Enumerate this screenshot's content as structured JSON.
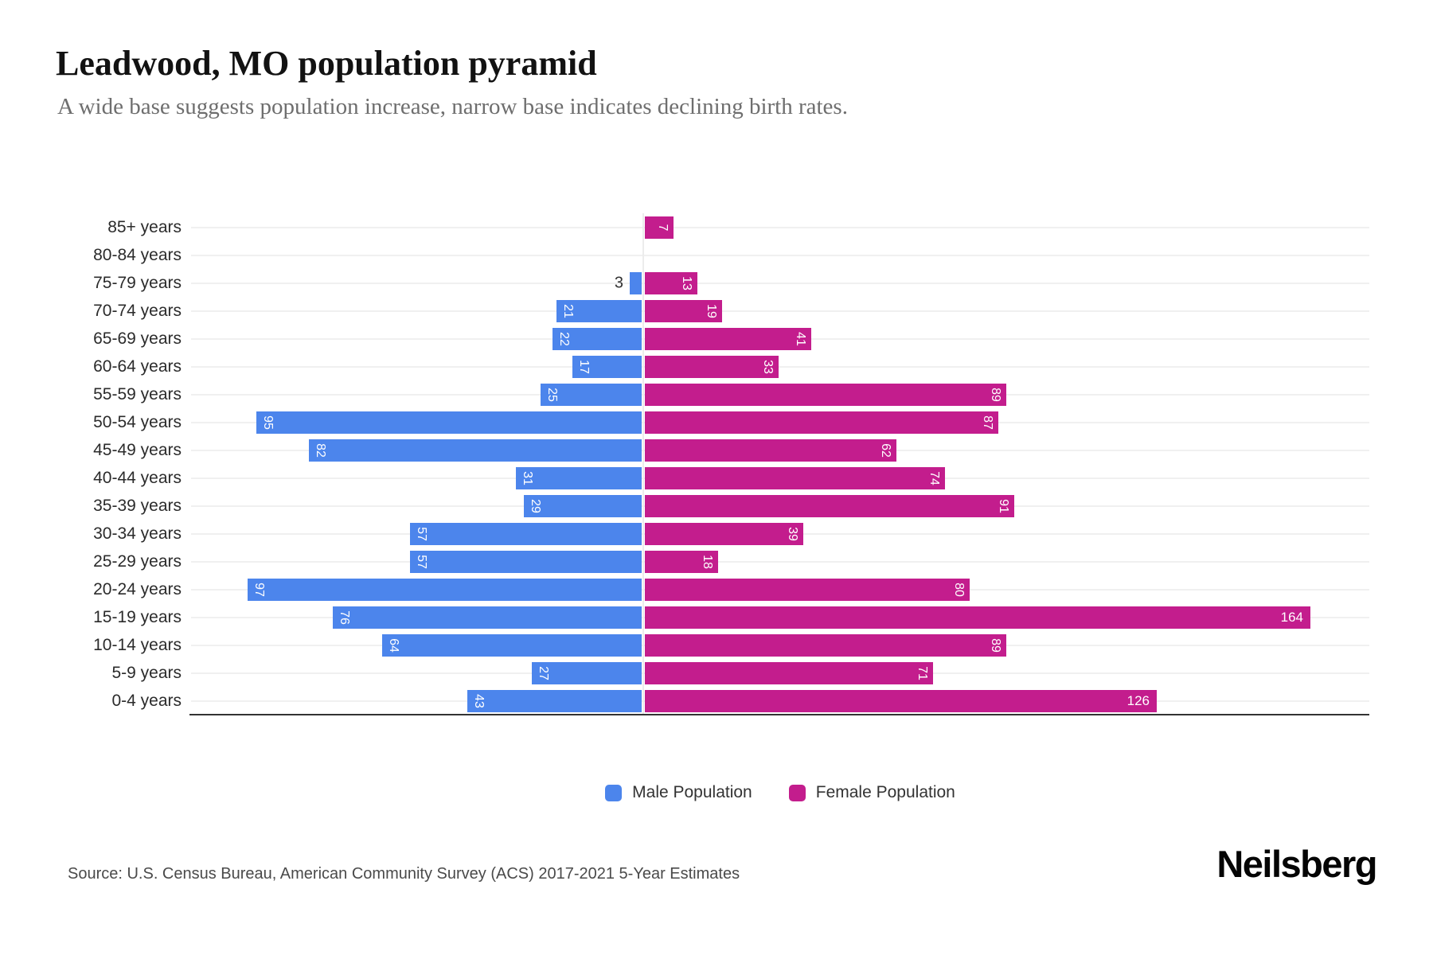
{
  "title": "Leadwood, MO population pyramid",
  "subtitle": "A wide base suggests population increase, narrow base indicates declining birth rates.",
  "source": "Source: U.S. Census Bureau, American Community Survey (ACS) 2017-2021 5-Year Estimates",
  "brand": "Neilsberg",
  "legend": {
    "male_label": "Male Population",
    "female_label": "Female Population"
  },
  "colors": {
    "male": "#4C85EC",
    "female": "#C31D8D",
    "grid": "#f0f0f0",
    "axis": "#333333",
    "title_text": "#121212",
    "subtitle_text": "#6e6e6e"
  },
  "chart_data": {
    "type": "bar",
    "variant": "population-pyramid",
    "title": "Leadwood, MO population pyramid",
    "xlabel": "",
    "ylabel": "",
    "grid": "horizontal",
    "legend_position": "bottom",
    "categories": [
      "85+ years",
      "80-84 years",
      "75-79 years",
      "70-74 years",
      "65-69 years",
      "60-64 years",
      "55-59 years",
      "50-54 years",
      "45-49 years",
      "40-44 years",
      "35-39 years",
      "30-34 years",
      "25-29 years",
      "20-24 years",
      "15-19 years",
      "10-14 years",
      "5-9 years",
      "0-4 years"
    ],
    "series": [
      {
        "name": "Male Population",
        "side": "left",
        "color": "#4C85EC",
        "values": [
          0,
          0,
          3,
          21,
          22,
          17,
          25,
          95,
          82,
          31,
          29,
          57,
          57,
          97,
          76,
          64,
          27,
          43
        ]
      },
      {
        "name": "Female Population",
        "side": "right",
        "color": "#C31D8D",
        "values": [
          7,
          0,
          13,
          19,
          41,
          33,
          89,
          87,
          62,
          74,
          91,
          39,
          18,
          80,
          164,
          89,
          71,
          126
        ]
      }
    ]
  }
}
